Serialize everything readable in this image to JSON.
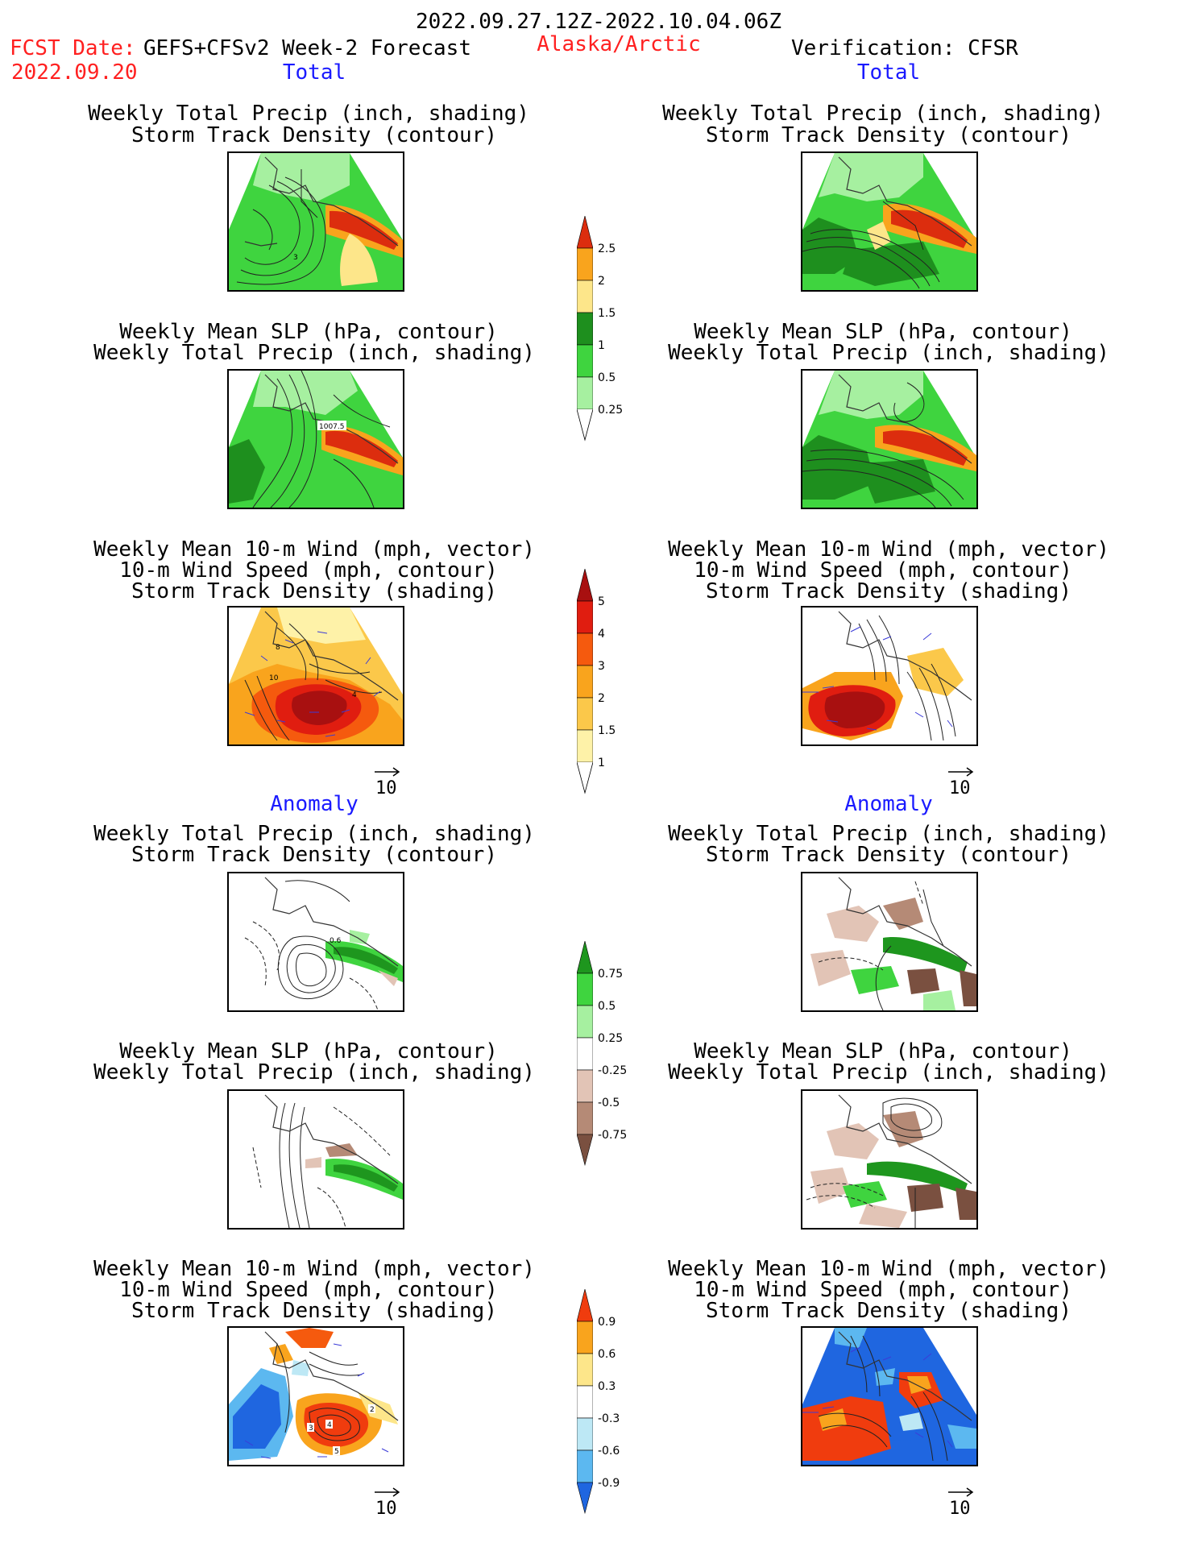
{
  "header": {
    "date_range": "2022.09.27.12Z-2022.10.04.06Z",
    "fcst_label": "FCST Date:",
    "fcst_model": "GEFS+CFSv2 Week-2 Forecast",
    "fcst_date": "2022.09.20",
    "region": "Alaska/Arctic",
    "verification": "Verification: CFSR"
  },
  "sections": {
    "total": "Total",
    "anomaly": "Anomaly"
  },
  "panels": {
    "precip_storm": [
      "Weekly Total Precip (inch, shading)",
      "Storm Track Density (contour)"
    ],
    "slp_precip": [
      "Weekly Mean SLP (hPa, contour)",
      "Weekly Total Precip (inch, shading)"
    ],
    "wind_storm": [
      "Weekly Mean 10-m Wind (mph, vector)",
      "10-m Wind Speed (mph, contour)",
      "Storm Track Density (shading)"
    ]
  },
  "map_labels": {
    "fc_precip_storm": "3",
    "fc_slp": "1007.5",
    "fc_wind_a": "8",
    "fc_wind_b": "10",
    "fc_wind_c": "4",
    "anom_precip_storm": "0.6",
    "anom_wind_a": "3",
    "anom_wind_b": "4",
    "anom_wind_c": "5",
    "anom_wind_d": "2"
  },
  "vector_ref": "10",
  "colorbars": {
    "precip_total": {
      "labels": [
        "2.5",
        "2",
        "1.5",
        "1",
        "0.5",
        "0.25"
      ],
      "colors": [
        "#dc2d0e",
        "#f9a41d",
        "#fde68a",
        "#1e8f1e",
        "#3fd43f",
        "#a6f0a0"
      ]
    },
    "storm_total": {
      "labels": [
        "5",
        "4",
        "3",
        "2",
        "1.5",
        "1"
      ],
      "colors": [
        "#a81010",
        "#e01d10",
        "#f55a0e",
        "#f9a41d",
        "#fbc84a",
        "#fef2a8"
      ]
    },
    "precip_anomaly": {
      "labels": [
        "0.75",
        "0.5",
        "0.25",
        "-0.25",
        "-0.5",
        "-0.75"
      ],
      "colors": [
        "#1e961e",
        "#3fd43f",
        "#a6f0a0",
        "#ffffff",
        "#e2c4b6",
        "#b58a76",
        "#7a5040"
      ]
    },
    "storm_anomaly": {
      "labels": [
        "0.9",
        "0.6",
        "0.3",
        "-0.3",
        "-0.6",
        "-0.9"
      ],
      "colors": [
        "#f03c0e",
        "#f9a41d",
        "#fde68a",
        "#ffffff",
        "#bde8f5",
        "#5cb8f0",
        "#1f66e0"
      ]
    }
  }
}
